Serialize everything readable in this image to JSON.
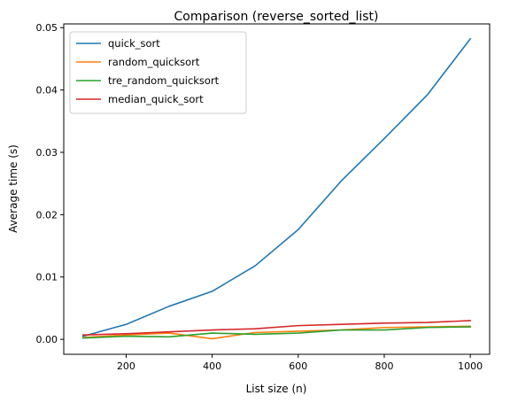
{
  "chart_data": {
    "type": "line",
    "title": "Comparison (reverse_sorted_list)",
    "xlabel": "List size (n)",
    "ylabel": "Average time (s)",
    "x": [
      100,
      200,
      300,
      400,
      500,
      600,
      700,
      800,
      900,
      1000
    ],
    "xlim": [
      55,
      1045
    ],
    "ylim": [
      -0.0024,
      0.0506
    ],
    "xticks": [
      200,
      400,
      600,
      800,
      1000
    ],
    "xtick_labels": [
      "200",
      "400",
      "600",
      "800",
      "1000"
    ],
    "yticks": [
      0.0,
      0.01,
      0.02,
      0.03,
      0.04,
      0.05
    ],
    "ytick_labels": [
      "0.00",
      "0.01",
      "0.02",
      "0.03",
      "0.04",
      "0.05"
    ],
    "grid": false,
    "legend_position": "top-left",
    "series": [
      {
        "name": "quick_sort",
        "color": "#1f77b4",
        "values": [
          0.0005,
          0.0024,
          0.0053,
          0.0077,
          0.0118,
          0.0176,
          0.0254,
          0.0322,
          0.0392,
          0.0482
        ]
      },
      {
        "name": "random_quicksort",
        "color": "#ff7f0e",
        "values": [
          0.0003,
          0.0007,
          0.001,
          0.0001,
          0.0011,
          0.0013,
          0.0015,
          0.0019,
          0.002,
          0.0021
        ]
      },
      {
        "name": "tre_random_quicksort",
        "color": "#2ca02c",
        "values": [
          0.0002,
          0.0005,
          0.0004,
          0.001,
          0.0008,
          0.001,
          0.0015,
          0.0015,
          0.0019,
          0.002
        ]
      },
      {
        "name": "median_quick_sort",
        "color": "#d62728",
        "values": [
          0.0007,
          0.0009,
          0.0012,
          0.0015,
          0.0017,
          0.0022,
          0.0024,
          0.0026,
          0.0027,
          0.003
        ]
      }
    ]
  }
}
